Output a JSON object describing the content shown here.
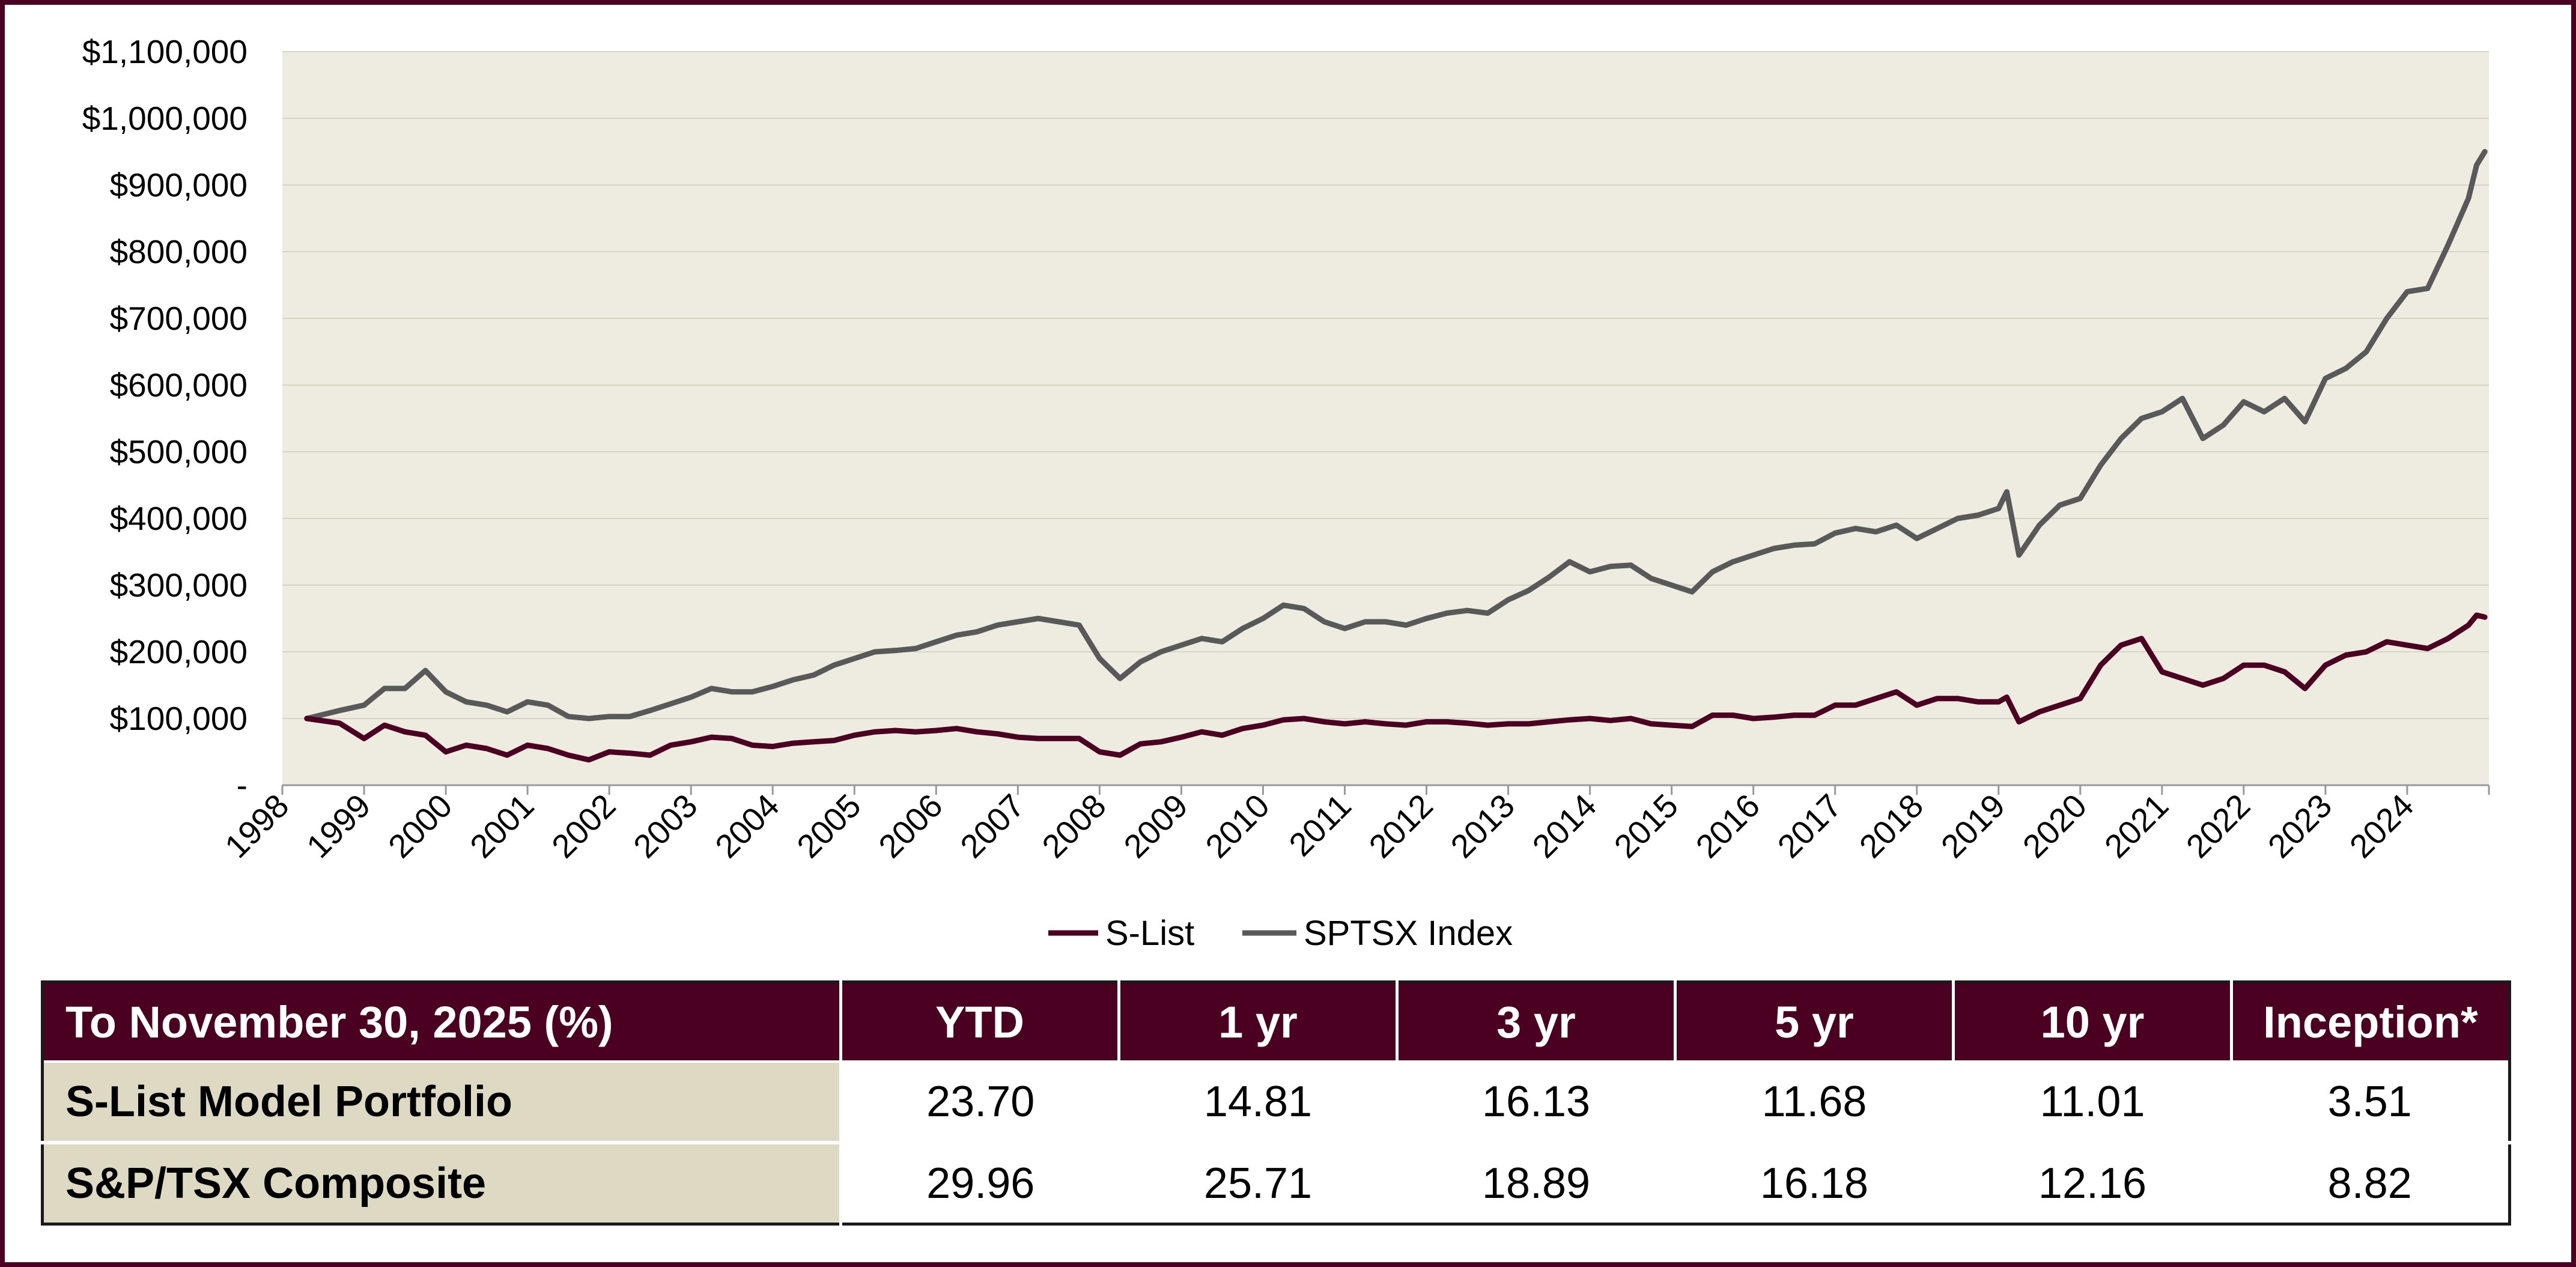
{
  "colors": {
    "frame": "#4b0021",
    "plot_background": "#eeebe1",
    "s_list": "#4b0021",
    "sptsx": "#595959",
    "table_header": "#4b0021",
    "row_label_background": "#ddd9c3"
  },
  "chart_data": {
    "type": "line",
    "title": "",
    "xlabel": "",
    "ylabel": "",
    "xlim": [
      1998,
      2025
    ],
    "ylim": [
      0,
      1100000
    ],
    "grid": true,
    "legend_position": "bottom-center",
    "x_ticks": [
      "1998",
      "1999",
      "2000",
      "2001",
      "2002",
      "2003",
      "2004",
      "2005",
      "2006",
      "2007",
      "2008",
      "2009",
      "2010",
      "2011",
      "2012",
      "2013",
      "2014",
      "2015",
      "2016",
      "2017",
      "2018",
      "2019",
      "2020",
      "2021",
      "2022",
      "2023",
      "2024"
    ],
    "y_ticks": [
      "-",
      "$100,000",
      "$200,000",
      "$300,000",
      "$400,000",
      "$500,000",
      "$600,000",
      "$700,000",
      "$800,000",
      "$900,000",
      "$1,000,000",
      "$1,100,000"
    ],
    "x": [
      1998.3,
      1998.7,
      1999.0,
      1999.25,
      1999.5,
      1999.75,
      2000.0,
      2000.25,
      2000.5,
      2000.75,
      2001.0,
      2001.25,
      2001.5,
      2001.75,
      2002.0,
      2002.25,
      2002.5,
      2002.75,
      2003.0,
      2003.25,
      2003.5,
      2003.75,
      2004.0,
      2004.25,
      2004.5,
      2004.75,
      2005.0,
      2005.25,
      2005.5,
      2005.75,
      2006.0,
      2006.25,
      2006.5,
      2006.75,
      2007.0,
      2007.25,
      2007.5,
      2007.75,
      2008.0,
      2008.25,
      2008.5,
      2008.75,
      2009.0,
      2009.25,
      2009.5,
      2009.75,
      2010.0,
      2010.25,
      2010.5,
      2010.75,
      2011.0,
      2011.25,
      2011.5,
      2011.75,
      2012.0,
      2012.25,
      2012.5,
      2012.75,
      2013.0,
      2013.25,
      2013.5,
      2013.75,
      2014.0,
      2014.25,
      2014.5,
      2014.75,
      2015.0,
      2015.25,
      2015.5,
      2015.75,
      2016.0,
      2016.25,
      2016.5,
      2016.75,
      2017.0,
      2017.25,
      2017.5,
      2017.75,
      2018.0,
      2018.25,
      2018.5,
      2018.75,
      2019.0,
      2019.1,
      2019.25,
      2019.5,
      2019.75,
      2020.0,
      2020.25,
      2020.5,
      2020.75,
      2021.0,
      2021.25,
      2021.5,
      2021.75,
      2022.0,
      2022.25,
      2022.5,
      2022.75,
      2023.0,
      2023.25,
      2023.5,
      2023.75,
      2024.0,
      2024.25,
      2024.5,
      2024.75,
      2024.85,
      2024.95
    ],
    "series": [
      {
        "name": "S-List",
        "values": [
          100000,
          93000,
          70000,
          90000,
          80000,
          75000,
          50000,
          60000,
          55000,
          45000,
          60000,
          55000,
          45000,
          38000,
          50000,
          48000,
          45000,
          60000,
          65000,
          72000,
          70000,
          60000,
          58000,
          63000,
          65000,
          67000,
          75000,
          80000,
          82000,
          80000,
          82000,
          85000,
          80000,
          77000,
          72000,
          70000,
          70000,
          70000,
          50000,
          45000,
          62000,
          65000,
          72000,
          80000,
          75000,
          85000,
          90000,
          98000,
          100000,
          95000,
          92000,
          95000,
          92000,
          90000,
          95000,
          95000,
          93000,
          90000,
          92000,
          92000,
          95000,
          98000,
          100000,
          97000,
          100000,
          92000,
          90000,
          88000,
          105000,
          105000,
          100000,
          102000,
          105000,
          105000,
          120000,
          120000,
          130000,
          140000,
          120000,
          130000,
          130000,
          125000,
          125000,
          132000,
          95000,
          110000,
          120000,
          130000,
          180000,
          210000,
          220000,
          170000,
          160000,
          150000,
          160000,
          180000,
          180000,
          170000,
          145000,
          180000,
          195000,
          200000,
          215000,
          210000,
          205000,
          220000,
          240000,
          255000,
          252000
        ]
      },
      {
        "name": "SPTSX Index",
        "values": [
          100000,
          112000,
          120000,
          145000,
          145000,
          172000,
          140000,
          125000,
          120000,
          110000,
          125000,
          120000,
          103000,
          100000,
          103000,
          103000,
          112000,
          122000,
          132000,
          145000,
          140000,
          140000,
          148000,
          158000,
          165000,
          180000,
          190000,
          200000,
          202000,
          205000,
          215000,
          225000,
          230000,
          240000,
          245000,
          250000,
          245000,
          240000,
          190000,
          160000,
          185000,
          200000,
          210000,
          220000,
          215000,
          235000,
          250000,
          270000,
          265000,
          245000,
          235000,
          245000,
          245000,
          240000,
          250000,
          258000,
          262000,
          258000,
          278000,
          292000,
          312000,
          335000,
          320000,
          328000,
          330000,
          310000,
          300000,
          290000,
          320000,
          335000,
          345000,
          355000,
          360000,
          362000,
          378000,
          385000,
          380000,
          390000,
          370000,
          385000,
          400000,
          405000,
          415000,
          440000,
          345000,
          390000,
          420000,
          430000,
          480000,
          520000,
          550000,
          560000,
          580000,
          520000,
          540000,
          575000,
          560000,
          580000,
          545000,
          610000,
          625000,
          650000,
          700000,
          740000,
          745000,
          810000,
          880000,
          930000,
          950000
        ]
      }
    ]
  },
  "legend": {
    "s_list_label": "S-List",
    "sptsx_label": "SPTSX Index"
  },
  "table": {
    "headers": [
      "To November 30, 2025 (%)",
      "YTD",
      "1 yr",
      "3 yr",
      "5 yr",
      "10 yr",
      "Inception*"
    ],
    "rows": [
      {
        "label": "S-List Model Portfolio",
        "values": [
          "23.70",
          "14.81",
          "16.13",
          "11.68",
          "11.01",
          "3.51"
        ]
      },
      {
        "label": "S&P/TSX Composite",
        "values": [
          "29.96",
          "25.71",
          "18.89",
          "16.18",
          "12.16",
          "8.82"
        ]
      }
    ]
  }
}
